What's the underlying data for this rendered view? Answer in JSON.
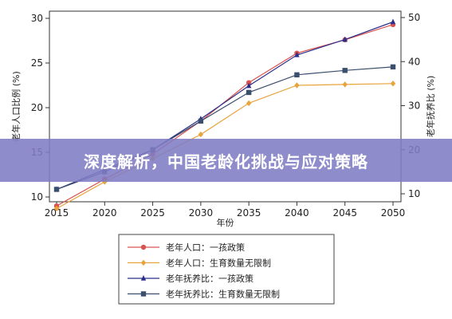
{
  "banner": {
    "title": "深度解析，中国老龄化挑战与应对策略"
  },
  "chart_data": {
    "type": "line",
    "xlabel": "年份",
    "ylabel_left": "老年人口比例 (%)",
    "ylabel_right": "老年抚养比 (%)",
    "x": [
      2015,
      2020,
      2025,
      2030,
      2035,
      2040,
      2045,
      2050
    ],
    "ylim_left": [
      9,
      30.5
    ],
    "yticks_left": [
      10,
      15,
      20,
      25,
      30
    ],
    "ylim_right": [
      8,
      52
    ],
    "yticks_right": [
      10,
      20,
      30,
      40,
      50
    ],
    "grid": false,
    "legend_position": "bottom",
    "series": [
      {
        "name": "老年人口：一孩政策",
        "axis": "left",
        "color": "#d9534f",
        "marker": "circle",
        "values": [
          9.0,
          12.0,
          14.8,
          18.5,
          22.8,
          26.1,
          27.6,
          29.3
        ]
      },
      {
        "name": "老年人口：生育数量无限制",
        "axis": "left",
        "color": "#e8a33c",
        "marker": "diamond",
        "values": [
          8.7,
          11.7,
          14.3,
          17.0,
          20.5,
          22.5,
          22.6,
          22.7
        ]
      },
      {
        "name": "老年抚养比：一孩政策",
        "axis": "right",
        "color": "#2b2f8a",
        "marker": "triangle",
        "values": [
          11.0,
          15.5,
          20.0,
          27.0,
          34.5,
          41.5,
          45.0,
          49.0
        ]
      },
      {
        "name": "老年抚养比：生育数量无限制",
        "axis": "right",
        "color": "#3a4e6e",
        "marker": "square",
        "values": [
          11.0,
          15.0,
          20.0,
          26.5,
          33.0,
          37.0,
          38.0,
          38.8
        ]
      }
    ]
  }
}
